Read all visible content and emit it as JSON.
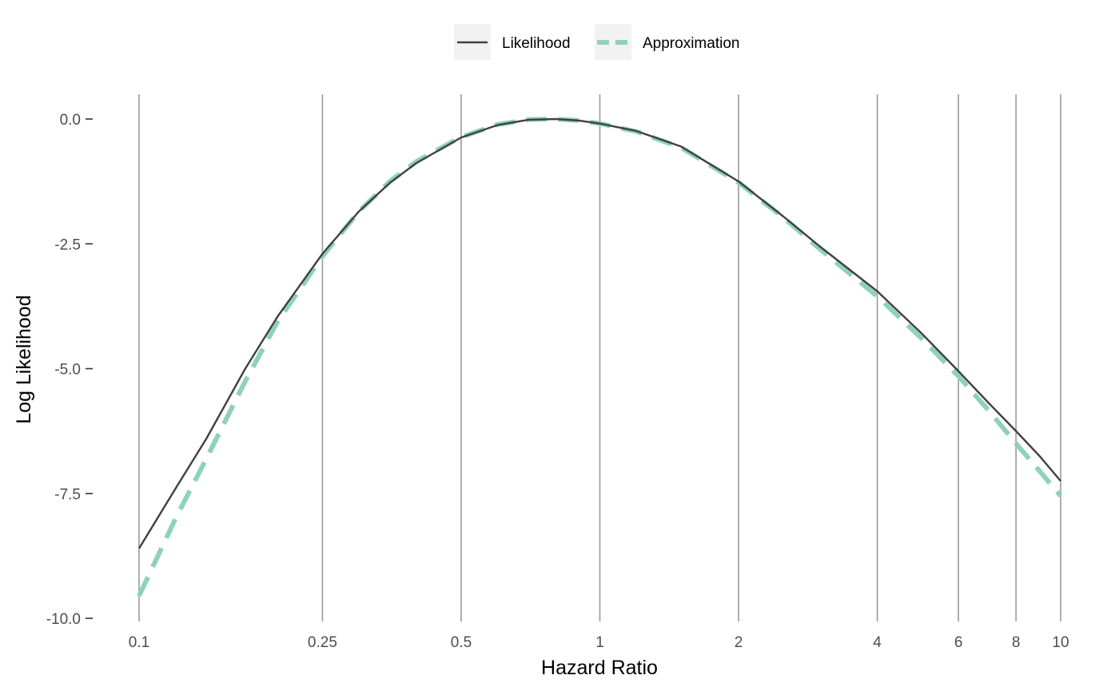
{
  "chart_data": {
    "type": "line",
    "title": "",
    "xlabel": "Hazard Ratio",
    "ylabel": "Log Likelihood",
    "x_scale": "log",
    "xlim": [
      0.1,
      10
    ],
    "ylim": [
      -10,
      0
    ],
    "x_ticks": [
      {
        "value": 0.1,
        "label": "0.1"
      },
      {
        "value": 0.25,
        "label": "0.25"
      },
      {
        "value": 0.5,
        "label": "0.5"
      },
      {
        "value": 1,
        "label": "1"
      },
      {
        "value": 2,
        "label": "2"
      },
      {
        "value": 4,
        "label": "4"
      },
      {
        "value": 6,
        "label": "6"
      },
      {
        "value": 8,
        "label": "8"
      },
      {
        "value": 10,
        "label": "10"
      }
    ],
    "y_ticks": [
      {
        "value": 0,
        "label": "0.0"
      },
      {
        "value": -2.5,
        "label": "-2.5"
      },
      {
        "value": -5,
        "label": "-5.0"
      },
      {
        "value": -7.5,
        "label": "-7.5"
      },
      {
        "value": -10,
        "label": "-10.0"
      }
    ],
    "grid": "vertical lines at x ticks",
    "legend_position": "top",
    "series": [
      {
        "name": "Likelihood",
        "color": "#404040",
        "style": "solid",
        "x": [
          0.1,
          0.12,
          0.14,
          0.17,
          0.2,
          0.25,
          0.3,
          0.35,
          0.4,
          0.5,
          0.6,
          0.7,
          0.8,
          0.9,
          1,
          1.2,
          1.5,
          2,
          2.5,
          3,
          4,
          5,
          6,
          7,
          8,
          9,
          10
        ],
        "values": [
          -8.6,
          -7.4,
          -6.4,
          -5.0,
          -3.95,
          -2.7,
          -1.85,
          -1.28,
          -0.88,
          -0.37,
          -0.12,
          -0.015,
          0.0,
          -0.03,
          -0.09,
          -0.24,
          -0.55,
          -1.25,
          -1.95,
          -2.55,
          -3.45,
          -4.3,
          -5.05,
          -5.7,
          -6.25,
          -6.75,
          -7.25
        ]
      },
      {
        "name": "Approximation",
        "color": "#8fd1bb",
        "style": "dashed",
        "x": [
          0.1,
          0.12,
          0.14,
          0.17,
          0.2,
          0.25,
          0.3,
          0.35,
          0.4,
          0.5,
          0.6,
          0.7,
          0.8,
          0.9,
          1,
          1.2,
          1.5,
          2,
          2.5,
          3,
          4,
          5,
          6,
          7,
          8,
          9,
          10
        ],
        "values": [
          -9.55,
          -8.0,
          -6.8,
          -5.25,
          -4.05,
          -2.75,
          -1.85,
          -1.25,
          -0.85,
          -0.36,
          -0.11,
          -0.01,
          0.0,
          -0.03,
          -0.09,
          -0.25,
          -0.57,
          -1.27,
          -1.97,
          -2.6,
          -3.55,
          -4.4,
          -5.15,
          -5.85,
          -6.5,
          -7.05,
          -7.55
        ]
      }
    ]
  }
}
